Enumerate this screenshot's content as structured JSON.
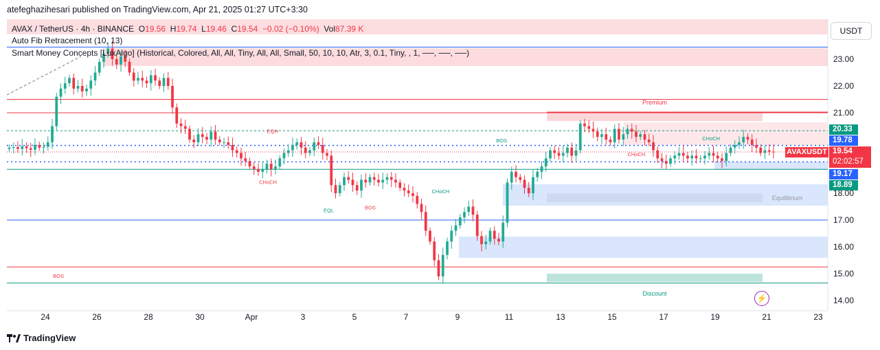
{
  "header": {
    "publisher": "atefeghazihesari published on TradingView.com, Apr 21, 2025 01:27 UTC+3:30"
  },
  "legend": {
    "symbol": "AVAX / TetherUS · 4h · BINANCE",
    "o_label": "O",
    "o": "19.56",
    "h_label": "H",
    "h": "19.74",
    "l_label": "L",
    "l": "19.46",
    "c_label": "C",
    "c": "19.54",
    "change": "−0.02 (−0.10%)",
    "vol_label": "Vol",
    "vol": "87.39 K",
    "fib": "Auto Fib Retracement (10, 13)",
    "smc": "Smart Money Concepts [LuxAlgo] (Historical, Colored, All, All, Tiny, All, All, Small, 50, 10, 10, Atr, 3, 0.1, Tiny, , 1, ──, ──, ──)"
  },
  "currency_button": "USDT",
  "price_tags": {
    "p2033": "20.33",
    "p1978": "19.78",
    "p1917": "19.17",
    "p1889": "18.89",
    "symbol_tag": "AVAXUSDT",
    "last": "19.54",
    "countdown": "02:02:57"
  },
  "zone_labels": {
    "premium": "Premium",
    "equilibrium": "Equilibrium",
    "discount": "Discount"
  },
  "footer": {
    "brand": "TradingView"
  },
  "colors": {
    "up": "#22ab94",
    "down": "#f23645",
    "premium_zone": "#fbd0d4",
    "equilibrium_zone": "#b2b5be",
    "discount_zone": "#b2dfd5",
    "order_block": "#cfe0fb"
  },
  "chart_data": {
    "type": "candlestick",
    "symbol": "AVAX / TetherUS",
    "timeframe": "4h",
    "ylim": [
      13.8,
      24.0
    ],
    "yticks": [
      14.0,
      15.0,
      16.0,
      17.0,
      18.0,
      19.0,
      20.0,
      21.0,
      22.0,
      23.0
    ],
    "ytick_labels": [
      "14.00",
      "15.00",
      "16.00",
      "17.00",
      "18.00",
      "",
      "20.00",
      "21.00",
      "22.00",
      "23.00"
    ],
    "xticks": [
      {
        "label": "24",
        "day": 0
      },
      {
        "label": "26",
        "day": 2
      },
      {
        "label": "28",
        "day": 4
      },
      {
        "label": "30",
        "day": 6
      },
      {
        "label": "Apr",
        "day": 8
      },
      {
        "label": "3",
        "day": 10
      },
      {
        "label": "5",
        "day": 12
      },
      {
        "label": "7",
        "day": 14
      },
      {
        "label": "9",
        "day": 16
      },
      {
        "label": "11",
        "day": 18
      },
      {
        "label": "13",
        "day": 20
      },
      {
        "label": "15",
        "day": 22
      },
      {
        "label": "17",
        "day": 24
      },
      {
        "label": "19",
        "day": 26
      },
      {
        "label": "21",
        "day": 28
      },
      {
        "label": "23",
        "day": 30
      }
    ],
    "candles_per_day": 6,
    "start_day": -1.4,
    "close_path": [
      19.7,
      19.72,
      19.65,
      19.75,
      19.68,
      19.62,
      19.8,
      19.7,
      19.73,
      19.9,
      20.5,
      21.6,
      21.9,
      22.1,
      22.3,
      21.9,
      22.0,
      21.8,
      21.9,
      22.2,
      22.5,
      22.9,
      23.2,
      23.4,
      23.0,
      22.8,
      23.1,
      22.9,
      22.5,
      22.2,
      22.3,
      22.2,
      22.1,
      22.4,
      22.2,
      22.0,
      22.3,
      22.0,
      21.2,
      20.6,
      20.5,
      20.4,
      20.0,
      19.9,
      20.2,
      20.1,
      20.0,
      20.3,
      20.0,
      19.9,
      19.9,
      19.8,
      19.6,
      19.5,
      19.3,
      19.2,
      19.0,
      18.9,
      18.8,
      18.9,
      19.1,
      18.9,
      19.0,
      19.3,
      19.5,
      19.6,
      19.8,
      19.9,
      19.7,
      19.5,
      19.6,
      19.9,
      19.8,
      19.5,
      19.4,
      18.3,
      18.0,
      18.3,
      18.6,
      18.5,
      18.3,
      18.1,
      18.5,
      18.4,
      18.6,
      18.5,
      18.4,
      18.5,
      18.6,
      18.5,
      18.4,
      18.2,
      18.1,
      18.0,
      17.9,
      17.6,
      17.3,
      16.6,
      16.2,
      15.5,
      14.9,
      15.7,
      16.2,
      16.6,
      16.8,
      17.1,
      17.3,
      17.5,
      17.2,
      16.4,
      16.1,
      16.2,
      16.6,
      16.3,
      16.2,
      16.9,
      18.4,
      18.8,
      18.6,
      18.5,
      18.2,
      18.0,
      18.6,
      18.8,
      19.0,
      19.3,
      19.6,
      19.5,
      19.4,
      19.5,
      19.7,
      19.4,
      19.6,
      20.6,
      20.5,
      20.4,
      20.3,
      20.1,
      20.2,
      20.0,
      19.9,
      20.4,
      20.0,
      20.2,
      20.4,
      20.3,
      20.1,
      20.2,
      20.0,
      19.9,
      19.6,
      19.3,
      19.2,
      19.1,
      19.3,
      19.4,
      19.5,
      19.4,
      19.3,
      19.4,
      19.3,
      19.3,
      19.4,
      19.5,
      19.4,
      19.3,
      19.2,
      19.5,
      19.7,
      19.8,
      19.9,
      20.1,
      20.0,
      19.8,
      19.7,
      19.5,
      19.6,
      19.55,
      19.54
    ],
    "indicators": {
      "levels": [
        {
          "name": "premium-top",
          "value": 21.0,
          "color": "#f23645"
        },
        {
          "name": "fib-upper",
          "value": 21.5,
          "color": "#f23645"
        },
        {
          "name": "level-20.33",
          "value": 20.33,
          "color": "#089981",
          "style": "dashed"
        },
        {
          "name": "level-19.78",
          "value": 19.78,
          "color": "#2962ff",
          "style": "dotted"
        },
        {
          "name": "level-19.17",
          "value": 19.17,
          "color": "#2962ff",
          "style": "dotted"
        },
        {
          "name": "level-18.89",
          "value": 18.89,
          "color": "#089981"
        },
        {
          "name": "level-17.0",
          "value": 17.0,
          "color": "#2962ff"
        },
        {
          "name": "level-15.25",
          "value": 15.25,
          "color": "#f23645"
        },
        {
          "name": "level-14.65",
          "value": 14.65,
          "color": "#089981"
        },
        {
          "name": "level-23.45",
          "value": 23.45,
          "color": "#2962ff"
        }
      ],
      "text_markers": [
        {
          "text": "BOS",
          "day": 0.3,
          "value": 14.85,
          "color": "#f23645"
        },
        {
          "text": "EQH",
          "day": 8.6,
          "value": 20.25,
          "color": "#f23645"
        },
        {
          "text": "CHoCH",
          "day": 8.3,
          "value": 18.35,
          "color": "#f23645"
        },
        {
          "text": "EQL",
          "day": 10.8,
          "value": 17.3,
          "color": "#089981"
        },
        {
          "text": "BOS",
          "day": 12.4,
          "value": 17.4,
          "color": "#f23645"
        },
        {
          "text": "CHoCH",
          "day": 15.0,
          "value": 18.0,
          "color": "#089981"
        },
        {
          "text": "BOS",
          "day": 17.5,
          "value": 19.9,
          "color": "#089981"
        },
        {
          "text": "CHoCH",
          "day": 22.6,
          "value": 19.39,
          "color": "#f23645"
        },
        {
          "text": "CHoCH",
          "day": 25.5,
          "value": 19.97,
          "color": "#089981"
        }
      ]
    }
  }
}
